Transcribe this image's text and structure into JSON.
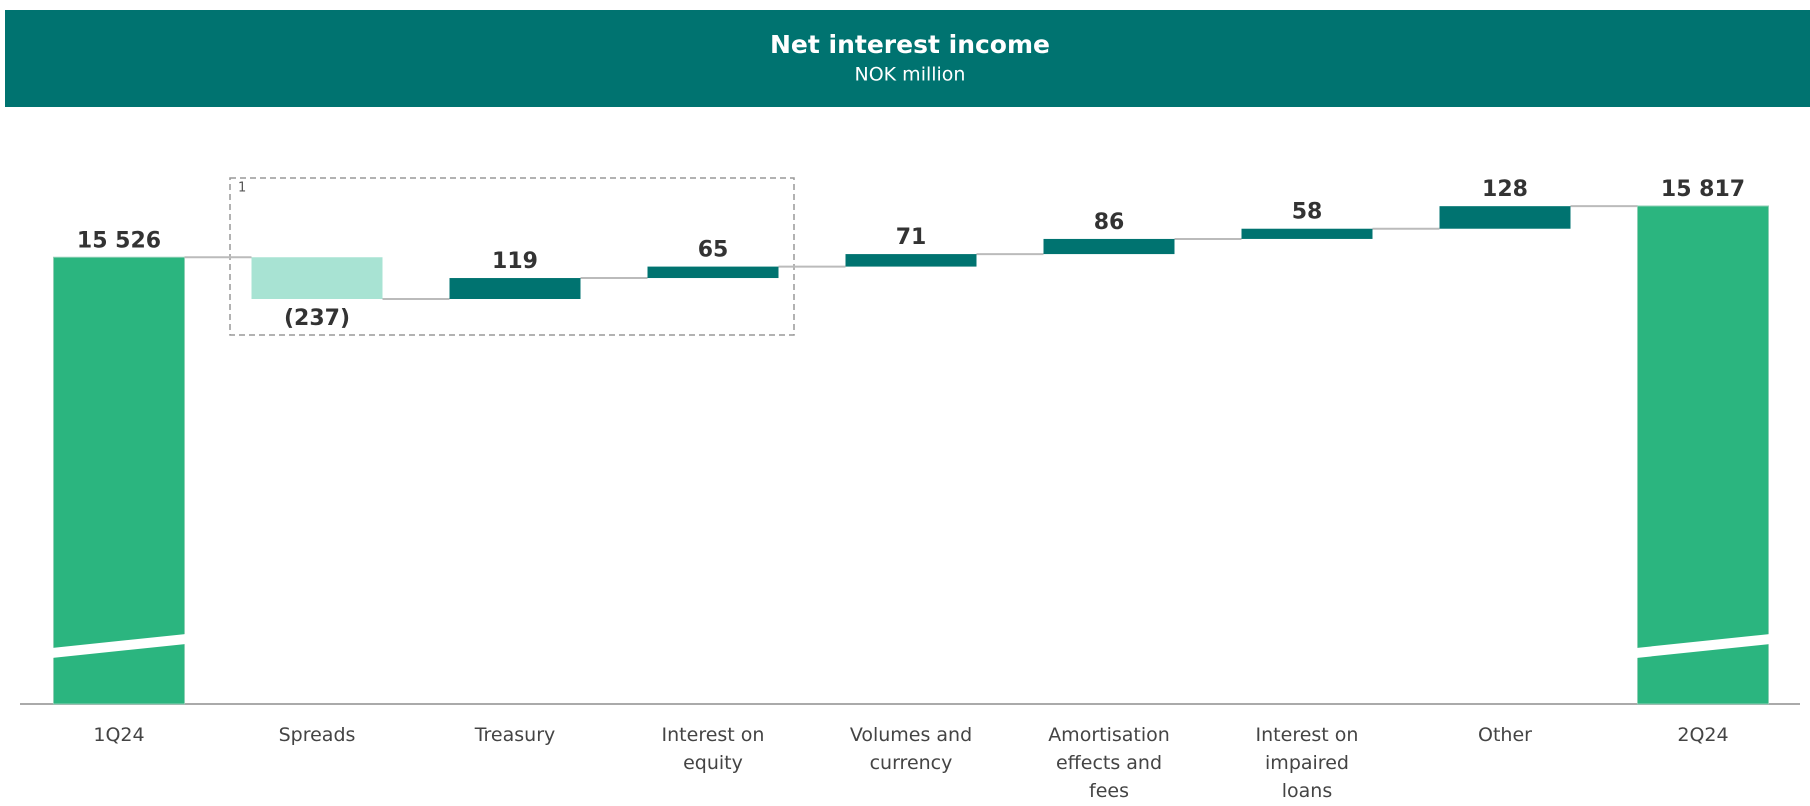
{
  "chart_data": {
    "type": "waterfall",
    "title": "Net interest income",
    "subtitle": "NOK million",
    "categories": [
      "1Q24",
      "Spreads",
      "Treasury",
      "Interest on equity",
      "Volumes and currency",
      "Amortisation effects and fees",
      "Interest on impaired loans",
      "Other",
      "2Q24"
    ],
    "values": [
      15526,
      -237,
      119,
      65,
      71,
      86,
      58,
      128,
      15817
    ],
    "value_labels": [
      "15 526",
      "(237)",
      "119",
      "65",
      "71",
      "86",
      "58",
      "128",
      "15 817"
    ],
    "kinds": [
      "total",
      "delta",
      "delta",
      "delta",
      "delta",
      "delta",
      "delta",
      "delta",
      "total"
    ],
    "colors": {
      "total": "#2bb57f",
      "increase": "#007370",
      "decrease": "#a8e3d3"
    },
    "box_label": "1"
  }
}
